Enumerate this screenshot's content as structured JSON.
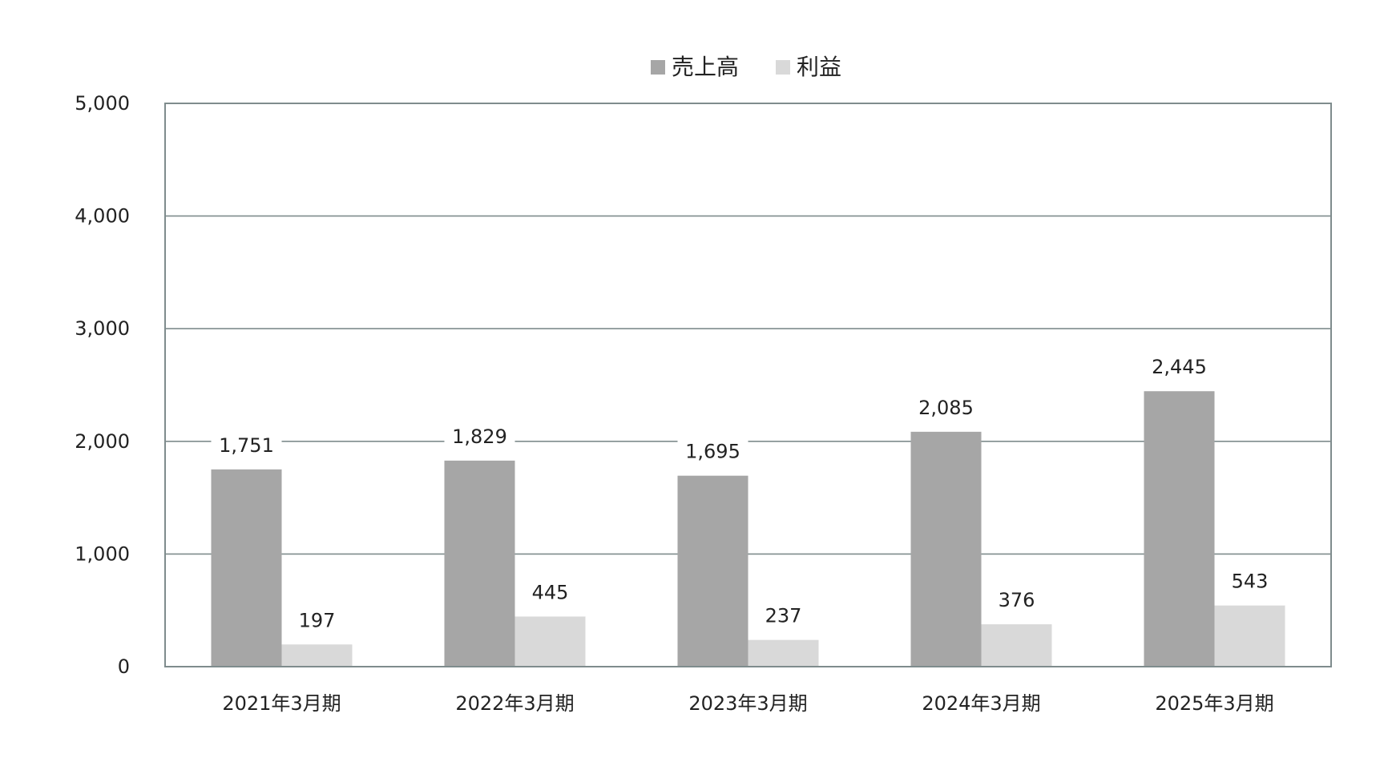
{
  "chart_data": {
    "type": "bar",
    "categories": [
      "2021年3月期",
      "2022年3月期",
      "2023年3月期",
      "2024年3月期",
      "2025年3月期"
    ],
    "series": [
      {
        "name": "売上高",
        "values": [
          1751,
          1829,
          1695,
          2085,
          2445
        ],
        "labels": [
          "1,751",
          "1,829",
          "1,695",
          "2,085",
          "2,445"
        ],
        "color": "#a6a6a6"
      },
      {
        "name": "利益",
        "values": [
          197,
          445,
          237,
          376,
          543
        ],
        "labels": [
          "197",
          "445",
          "237",
          "376",
          "543"
        ],
        "color": "#d9d9d9"
      }
    ],
    "ylim": [
      0,
      5000
    ],
    "yticks": [
      0,
      1000,
      2000,
      3000,
      4000,
      5000
    ],
    "ytick_labels": [
      "0",
      "1,000",
      "2,000",
      "3,000",
      "4,000",
      "5,000"
    ],
    "title": "",
    "xlabel": "",
    "ylabel": "",
    "grid": true,
    "legend_position": "top-center",
    "gridline_color": "#7f8c8d",
    "frame_color": "#7f8c8d"
  }
}
